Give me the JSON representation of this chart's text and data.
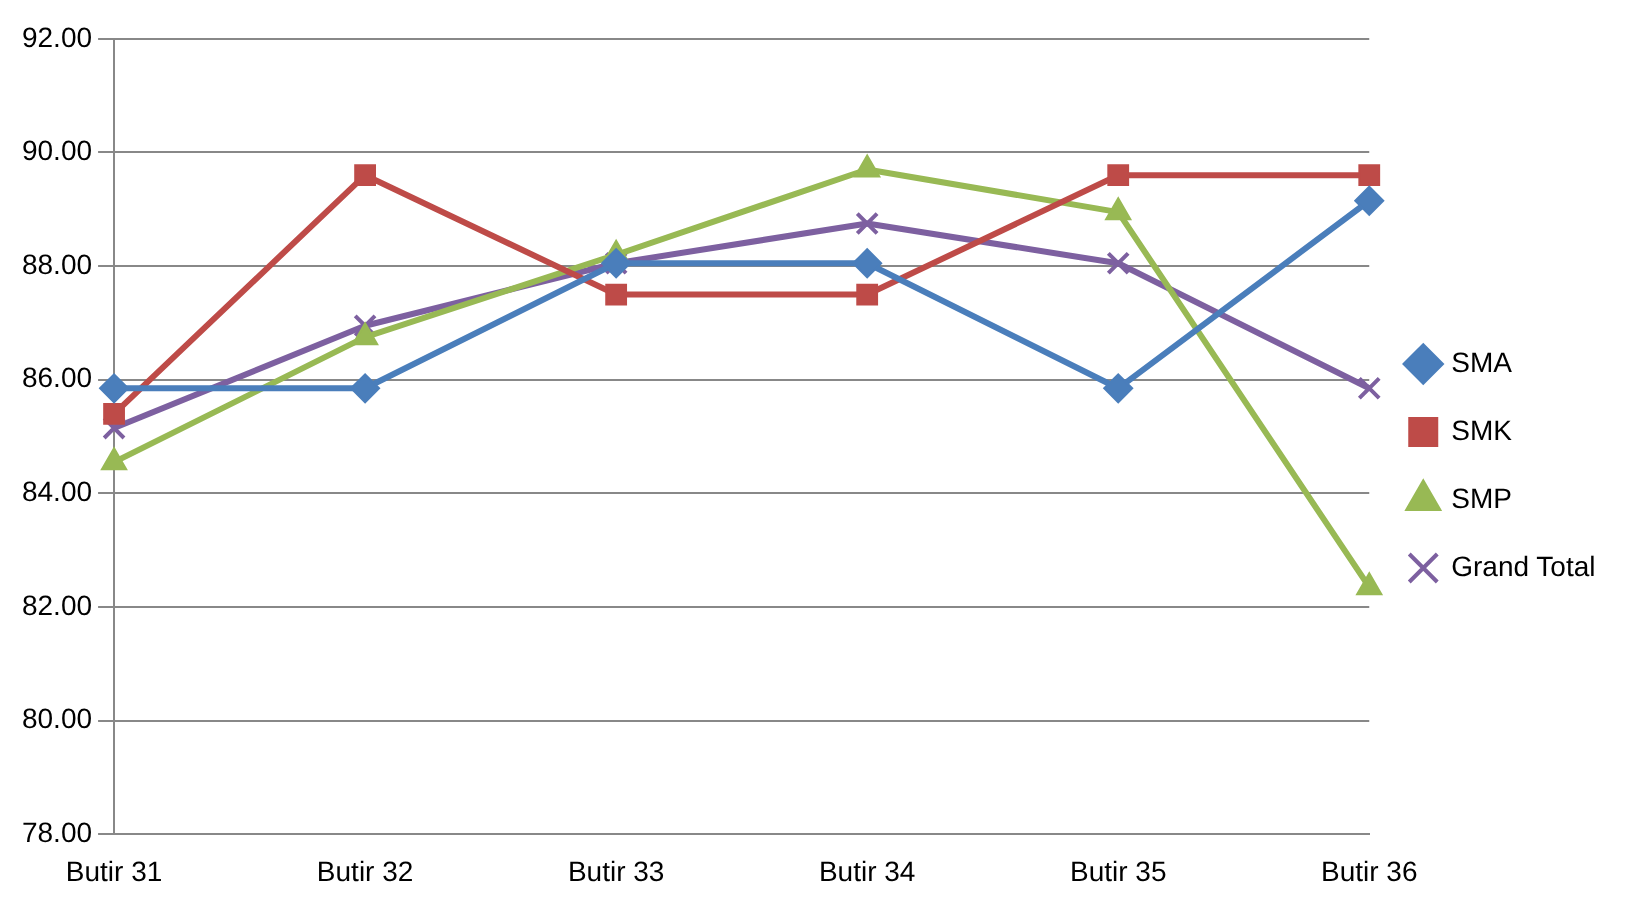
{
  "chart_data": {
    "type": "line",
    "categories": [
      "Butir 31",
      "Butir 32",
      "Butir 33",
      "Butir 34",
      "Butir 35",
      "Butir 36"
    ],
    "series": [
      {
        "name": "SMA",
        "color": "#4a7ebb",
        "marker": "diamond",
        "values": [
          85.85,
          85.85,
          88.05,
          88.05,
          85.85,
          89.15
        ]
      },
      {
        "name": "SMK",
        "color": "#be4b48",
        "marker": "square",
        "values": [
          85.4,
          89.6,
          87.5,
          87.5,
          89.6,
          89.6
        ]
      },
      {
        "name": "SMP",
        "color": "#98b954",
        "marker": "triangle",
        "values": [
          84.55,
          86.75,
          88.2,
          89.7,
          88.95,
          82.35
        ]
      },
      {
        "name": "Grand Total",
        "color": "#7d60a0",
        "marker": "cross",
        "values": [
          85.15,
          86.95,
          88.05,
          88.75,
          88.05,
          85.85
        ]
      }
    ],
    "ylim": [
      78,
      92
    ],
    "yticks": [
      {
        "value": 78,
        "label": "78.00"
      },
      {
        "value": 80,
        "label": "80.00"
      },
      {
        "value": 82,
        "label": "82.00"
      },
      {
        "value": 84,
        "label": "84.00"
      },
      {
        "value": 86,
        "label": "86.00"
      },
      {
        "value": 88,
        "label": "88.00"
      },
      {
        "value": 90,
        "label": "90.00"
      },
      {
        "value": 92,
        "label": "92.00"
      }
    ],
    "grid": "y",
    "legend": "right",
    "line_style": "solid"
  }
}
